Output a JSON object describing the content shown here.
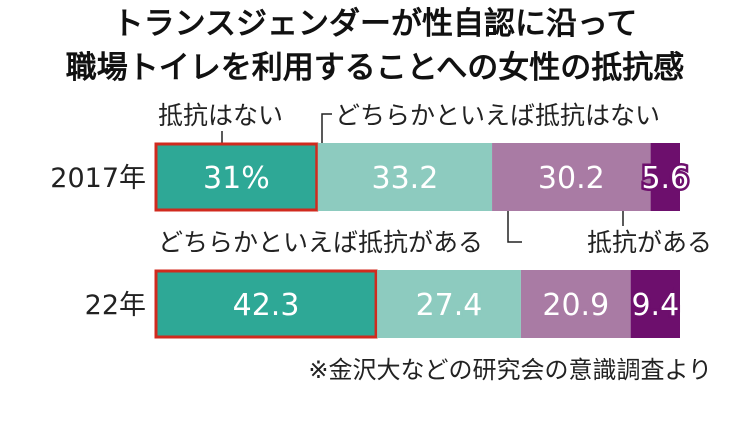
{
  "chart_data": {
    "type": "bar",
    "orientation": "horizontal-stacked-100",
    "title_lines": [
      "トランスジェンダーが性自認に沿って",
      "職場トイレを利用することへの女性の抵抗感"
    ],
    "categories": [
      "2017年",
      "22年"
    ],
    "series": [
      {
        "name": "抵抗はない",
        "values": [
          31,
          42.3
        ],
        "color": "#2ea896"
      },
      {
        "name": "どちらかといえば抵抗はない",
        "values": [
          33.2,
          27.4
        ],
        "color": "#8dcbbf"
      },
      {
        "name": "どちらかといえば抵抗がある",
        "values": [
          30.2,
          20.9
        ],
        "color": "#a97ba4"
      },
      {
        "name": "抵抗がある",
        "values": [
          5.6,
          9.4
        ],
        "color": "#6d0f6d"
      }
    ],
    "data_labels": [
      [
        "31%",
        "33.2",
        "30.2",
        "5.6"
      ],
      [
        "42.3",
        "27.4",
        "20.9",
        "9.4"
      ]
    ],
    "highlight_color": "#d02a1e",
    "note": "※金沢大などの研究会の意識調査より"
  }
}
